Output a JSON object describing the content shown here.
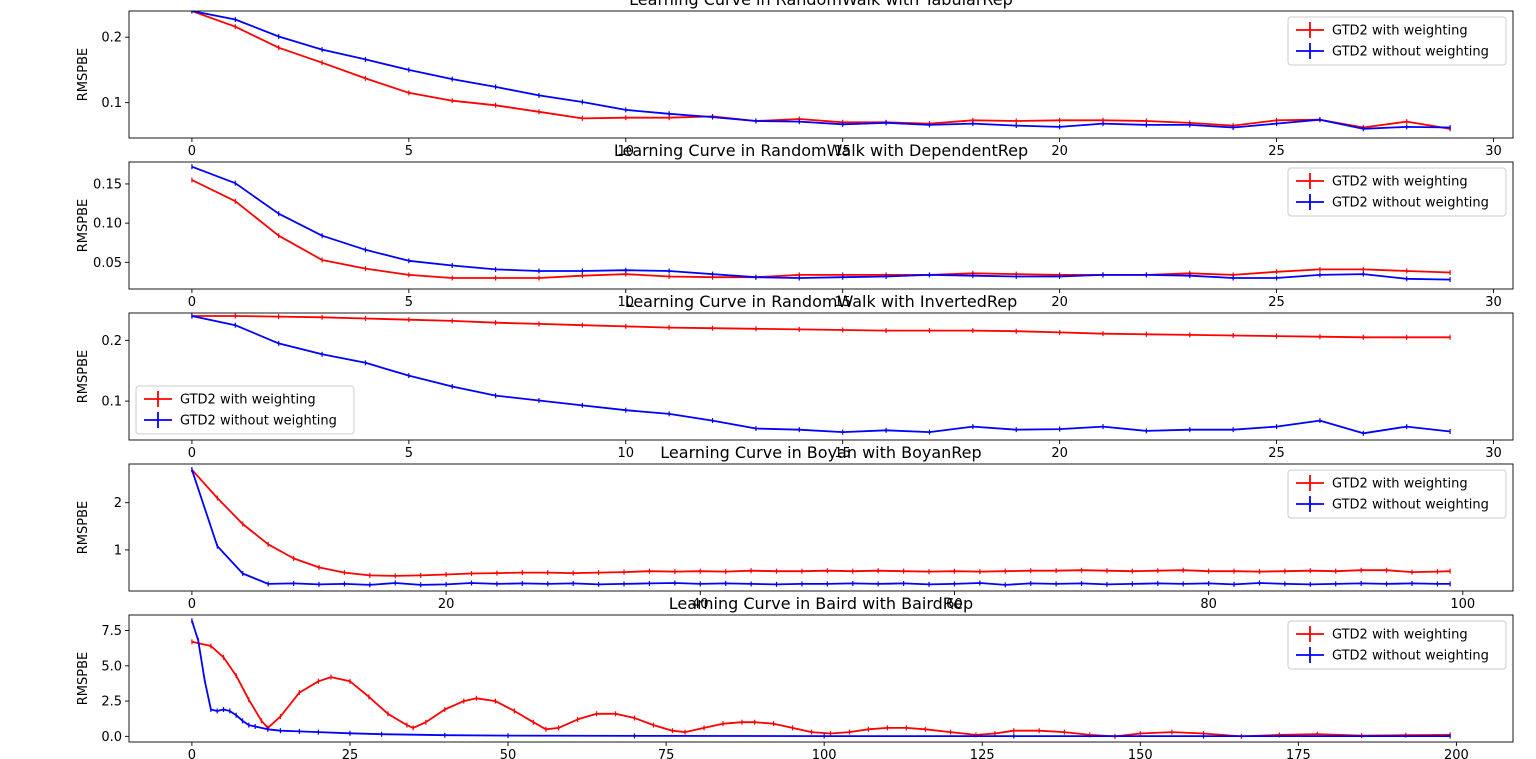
{
  "chart_data": [
    {
      "type": "line",
      "title": "Learning Curve in RandomWalk with TabularRep",
      "xlabel": "",
      "ylabel": "RMSPBE",
      "xlim": [
        -1.45,
        30.45
      ],
      "ylim": [
        0.046,
        0.24
      ],
      "xticks": [
        0,
        5,
        10,
        15,
        20,
        25,
        30
      ],
      "yticks": [
        0.1,
        0.2
      ],
      "ytick_labels": [
        "0.1",
        "0.2"
      ],
      "legend_loc": "top-right",
      "x": [
        0,
        1,
        2,
        3,
        4,
        5,
        6,
        7,
        8,
        9,
        10,
        11,
        12,
        13,
        14,
        15,
        16,
        17,
        18,
        19,
        20,
        21,
        22,
        23,
        24,
        25,
        26,
        27,
        28,
        29
      ],
      "series": [
        {
          "name": "GTD2 with weighting",
          "color": "#ff0000",
          "values": [
            0.24,
            0.216,
            0.184,
            0.161,
            0.137,
            0.115,
            0.103,
            0.096,
            0.086,
            0.076,
            0.077,
            0.077,
            0.079,
            0.072,
            0.075,
            0.07,
            0.07,
            0.068,
            0.073,
            0.072,
            0.073,
            0.073,
            0.072,
            0.069,
            0.065,
            0.073,
            0.074,
            0.062,
            0.071,
            0.06
          ]
        },
        {
          "name": "GTD2 without weighting",
          "color": "#0000ff",
          "values": [
            0.24,
            0.227,
            0.201,
            0.181,
            0.166,
            0.15,
            0.136,
            0.124,
            0.111,
            0.101,
            0.089,
            0.083,
            0.078,
            0.072,
            0.071,
            0.067,
            0.069,
            0.066,
            0.068,
            0.065,
            0.063,
            0.068,
            0.066,
            0.066,
            0.062,
            0.068,
            0.074,
            0.06,
            0.063,
            0.062
          ]
        }
      ]
    },
    {
      "type": "line",
      "title": "Learning Curve in RandomWalk with DependentRep",
      "xlabel": "",
      "ylabel": "RMSPBE",
      "xlim": [
        -1.45,
        30.45
      ],
      "ylim": [
        0.016,
        0.178
      ],
      "xticks": [
        0,
        5,
        10,
        15,
        20,
        25,
        30
      ],
      "yticks": [
        0.05,
        0.1,
        0.15
      ],
      "ytick_labels": [
        "0.05",
        "0.10",
        "0.15"
      ],
      "legend_loc": "top-right",
      "x": [
        0,
        1,
        2,
        3,
        4,
        5,
        6,
        7,
        8,
        9,
        10,
        11,
        12,
        13,
        14,
        15,
        16,
        17,
        18,
        19,
        20,
        21,
        22,
        23,
        24,
        25,
        26,
        27,
        28,
        29
      ],
      "series": [
        {
          "name": "GTD2 with weighting",
          "color": "#ff0000",
          "values": [
            0.155,
            0.128,
            0.084,
            0.053,
            0.042,
            0.034,
            0.03,
            0.03,
            0.03,
            0.033,
            0.035,
            0.032,
            0.031,
            0.031,
            0.034,
            0.034,
            0.034,
            0.034,
            0.036,
            0.035,
            0.034,
            0.034,
            0.034,
            0.036,
            0.034,
            0.038,
            0.041,
            0.041,
            0.039,
            0.037
          ]
        },
        {
          "name": "GTD2 without weighting",
          "color": "#0000ff",
          "values": [
            0.172,
            0.151,
            0.112,
            0.084,
            0.066,
            0.052,
            0.046,
            0.041,
            0.039,
            0.039,
            0.04,
            0.039,
            0.035,
            0.031,
            0.03,
            0.031,
            0.032,
            0.034,
            0.033,
            0.032,
            0.032,
            0.034,
            0.034,
            0.033,
            0.03,
            0.03,
            0.034,
            0.035,
            0.029,
            0.028
          ]
        }
      ]
    },
    {
      "type": "line",
      "title": "Learning Curve in RandomWalk with InvertedRep",
      "xlabel": "",
      "ylabel": "RMSPBE",
      "xlim": [
        -1.45,
        30.45
      ],
      "ylim": [
        0.036,
        0.245
      ],
      "xticks": [
        0,
        5,
        10,
        15,
        20,
        25,
        30
      ],
      "yticks": [
        0.1,
        0.2
      ],
      "ytick_labels": [
        "0.1",
        "0.2"
      ],
      "legend_loc": "center-left",
      "x": [
        0,
        1,
        2,
        3,
        4,
        5,
        6,
        7,
        8,
        9,
        10,
        11,
        12,
        13,
        14,
        15,
        16,
        17,
        18,
        19,
        20,
        21,
        22,
        23,
        24,
        25,
        26,
        27,
        28,
        29
      ],
      "series": [
        {
          "name": "GTD2 with weighting",
          "color": "#ff0000",
          "values": [
            0.24,
            0.24,
            0.239,
            0.238,
            0.236,
            0.234,
            0.232,
            0.229,
            0.227,
            0.225,
            0.223,
            0.221,
            0.22,
            0.219,
            0.218,
            0.217,
            0.216,
            0.216,
            0.216,
            0.215,
            0.213,
            0.211,
            0.21,
            0.209,
            0.208,
            0.207,
            0.206,
            0.205,
            0.205,
            0.205
          ]
        },
        {
          "name": "GTD2 without weighting",
          "color": "#0000ff",
          "values": [
            0.24,
            0.225,
            0.195,
            0.177,
            0.163,
            0.142,
            0.124,
            0.109,
            0.101,
            0.093,
            0.085,
            0.079,
            0.068,
            0.055,
            0.053,
            0.049,
            0.052,
            0.049,
            0.058,
            0.053,
            0.054,
            0.058,
            0.051,
            0.053,
            0.053,
            0.058,
            0.068,
            0.047,
            0.058,
            0.05
          ]
        }
      ]
    },
    {
      "type": "line",
      "title": "Learning Curve in Boyan with BoyanRep",
      "xlabel": "",
      "ylabel": "RMSPBE",
      "xlim": [
        -4.95,
        103.95
      ],
      "ylim": [
        0.13,
        2.82
      ],
      "xticks": [
        0,
        20,
        40,
        60,
        80,
        100
      ],
      "yticks": [
        1,
        2
      ],
      "ytick_labels": [
        "1",
        "2"
      ],
      "legend_loc": "top-right",
      "x": [
        0,
        2,
        4,
        6,
        8,
        10,
        12,
        14,
        16,
        18,
        20,
        22,
        24,
        26,
        28,
        30,
        32,
        34,
        36,
        38,
        40,
        42,
        44,
        46,
        48,
        50,
        52,
        54,
        56,
        58,
        60,
        62,
        64,
        66,
        68,
        70,
        72,
        74,
        76,
        78,
        80,
        82,
        84,
        86,
        88,
        90,
        92,
        94,
        96,
        98,
        99
      ],
      "series": [
        {
          "name": "GTD2 with weighting",
          "color": "#ff0000",
          "values": [
            2.7,
            2.1,
            1.55,
            1.12,
            0.82,
            0.63,
            0.52,
            0.46,
            0.45,
            0.46,
            0.48,
            0.5,
            0.51,
            0.52,
            0.52,
            0.51,
            0.52,
            0.53,
            0.55,
            0.54,
            0.55,
            0.54,
            0.56,
            0.55,
            0.55,
            0.56,
            0.55,
            0.56,
            0.55,
            0.54,
            0.55,
            0.54,
            0.55,
            0.56,
            0.56,
            0.57,
            0.56,
            0.55,
            0.56,
            0.57,
            0.55,
            0.55,
            0.54,
            0.55,
            0.56,
            0.55,
            0.57,
            0.57,
            0.53,
            0.54,
            0.55
          ]
        },
        {
          "name": "GTD2 without weighting",
          "color": "#0000ff",
          "values": [
            2.7,
            1.08,
            0.5,
            0.28,
            0.29,
            0.27,
            0.28,
            0.26,
            0.3,
            0.26,
            0.27,
            0.3,
            0.28,
            0.29,
            0.28,
            0.29,
            0.27,
            0.28,
            0.29,
            0.3,
            0.28,
            0.29,
            0.28,
            0.27,
            0.28,
            0.28,
            0.29,
            0.28,
            0.29,
            0.27,
            0.28,
            0.3,
            0.26,
            0.29,
            0.28,
            0.29,
            0.27,
            0.28,
            0.29,
            0.28,
            0.29,
            0.27,
            0.3,
            0.28,
            0.27,
            0.28,
            0.29,
            0.28,
            0.29,
            0.28,
            0.28
          ]
        }
      ]
    },
    {
      "type": "line",
      "title": "Learning Curve in Baird with BairdRep",
      "xlabel": "",
      "ylabel": "RMSPBE",
      "xlim": [
        -9.95,
        208.95
      ],
      "ylim": [
        -0.4,
        8.6
      ],
      "xticks": [
        0,
        25,
        50,
        75,
        100,
        125,
        150,
        175,
        200
      ],
      "yticks": [
        0.0,
        2.5,
        5.0,
        7.5
      ],
      "ytick_labels": [
        "0.0",
        "2.5",
        "5.0",
        "7.5"
      ],
      "legend_loc": "top-right",
      "series": [
        {
          "name": "GTD2 with weighting",
          "color": "#ff0000",
          "x": [
            0,
            3,
            5,
            7,
            9,
            11,
            12,
            14,
            17,
            20,
            22,
            25,
            28,
            31,
            34,
            35,
            37,
            40,
            43,
            45,
            48,
            51,
            54,
            56,
            58,
            61,
            64,
            67,
            70,
            73,
            76,
            78,
            81,
            84,
            87,
            89,
            92,
            95,
            98,
            101,
            104,
            107,
            110,
            113,
            116,
            120,
            124,
            127,
            130,
            134,
            138,
            142,
            146,
            150,
            155,
            160,
            166,
            172,
            178,
            185,
            192,
            199
          ],
          "values": [
            6.7,
            6.4,
            5.6,
            4.3,
            2.6,
            1.1,
            0.6,
            1.4,
            3.1,
            3.9,
            4.2,
            3.9,
            2.8,
            1.6,
            0.8,
            0.6,
            1.0,
            1.9,
            2.5,
            2.7,
            2.5,
            1.8,
            1.0,
            0.5,
            0.6,
            1.2,
            1.6,
            1.6,
            1.3,
            0.8,
            0.4,
            0.3,
            0.6,
            0.9,
            1.0,
            1.0,
            0.9,
            0.6,
            0.3,
            0.2,
            0.3,
            0.5,
            0.6,
            0.6,
            0.5,
            0.3,
            0.1,
            0.2,
            0.4,
            0.4,
            0.3,
            0.1,
            0.0,
            0.2,
            0.3,
            0.2,
            0.0,
            0.1,
            0.15,
            0.05,
            0.08,
            0.1
          ]
        },
        {
          "name": "GTD2 without weighting",
          "color": "#0000ff",
          "x": [
            0,
            1,
            2,
            3,
            4,
            5,
            6,
            7,
            8,
            9,
            10,
            12,
            14,
            17,
            20,
            25,
            30,
            40,
            50,
            70,
            100,
            130,
            160,
            199
          ],
          "values": [
            8.2,
            6.8,
            4.0,
            1.9,
            1.8,
            1.9,
            1.8,
            1.5,
            1.1,
            0.8,
            0.7,
            0.5,
            0.4,
            0.35,
            0.3,
            0.22,
            0.15,
            0.08,
            0.05,
            0.03,
            0.02,
            0.02,
            0.02,
            0.02
          ]
        }
      ]
    }
  ]
}
